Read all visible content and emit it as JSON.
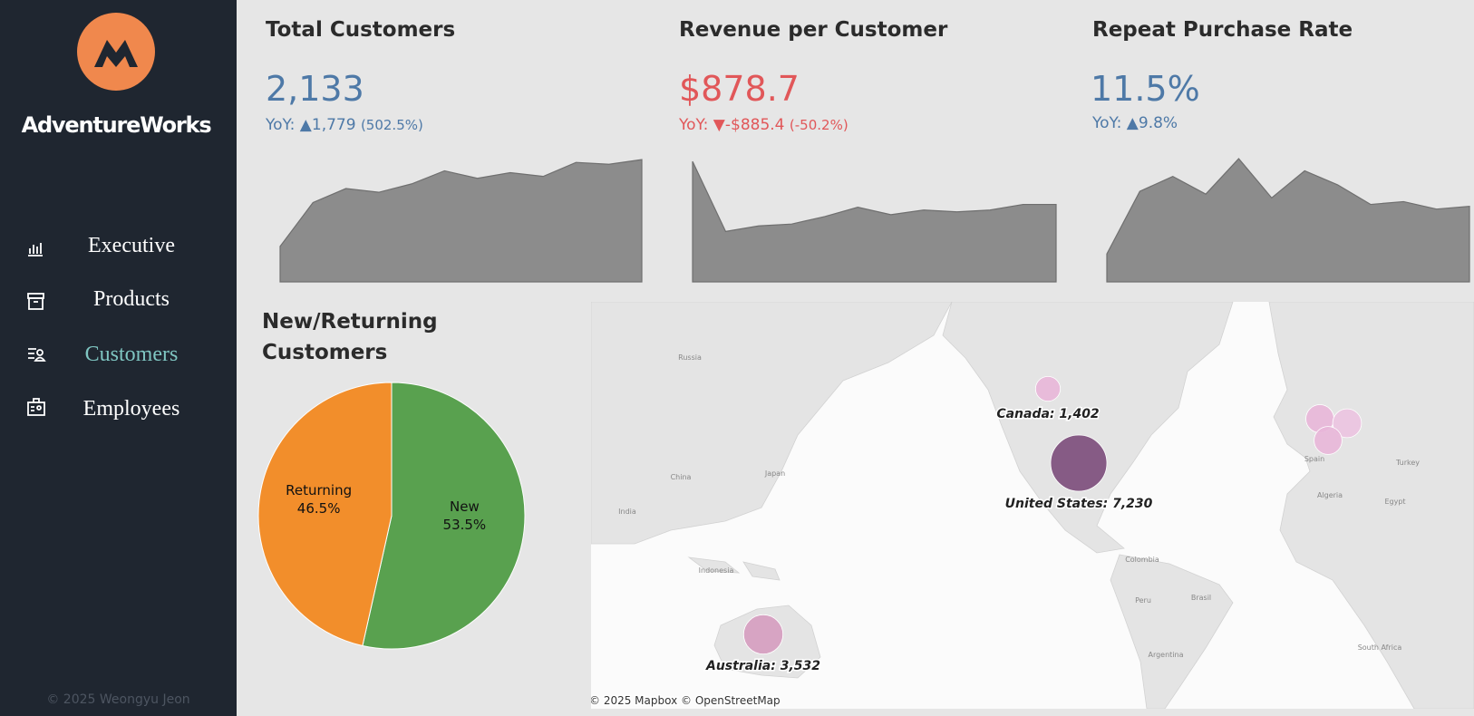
{
  "sidebar": {
    "brand": "AdventureWorks",
    "nav": [
      "Executive",
      "Products",
      "Customers",
      "Employees"
    ],
    "active": 2,
    "footer": "© 2025 Weongyu Jeon"
  },
  "kpis": [
    {
      "title": "Total Customers",
      "value": "2,133",
      "yoy": "YoY:",
      "arrow": "▲",
      "change": "1,779",
      "change_pct": "(502.5%)",
      "color": "#4e79a7",
      "spark": {
        "type": "area",
        "values": [
          38,
          85,
          100,
          96,
          105,
          119,
          111,
          117,
          113,
          128,
          126,
          131
        ],
        "ylim": [
          0,
          135
        ],
        "color": "#8c8c8c"
      }
    },
    {
      "title": "Revenue per Customer",
      "value": "$878.7",
      "yoy": "YoY:",
      "arrow": "▼",
      "change": "-$885.4",
      "change_pct": "(-50.2%)",
      "color": "#e15759",
      "spark": {
        "type": "area",
        "values": [
          129,
          54,
          60,
          62,
          70,
          80,
          72,
          77,
          75,
          77,
          83,
          83
        ],
        "ylim": [
          0,
          135
        ],
        "color": "#8c8c8c"
      }
    },
    {
      "title": "Repeat Purchase Rate",
      "value": "11.5%",
      "yoy": "YoY:",
      "arrow": "▲",
      "change": "9.8%",
      "color": "#4e79a7",
      "spark": {
        "type": "area",
        "values": [
          30,
          97,
          113,
          94,
          132,
          90,
          119,
          104,
          83,
          86,
          78,
          81
        ],
        "ylim": [
          0,
          135
        ],
        "color": "#8c8c8c"
      }
    }
  ],
  "pie": {
    "type": "pie",
    "title": "New/Returning Customers",
    "categories": [
      "New",
      "Returning"
    ],
    "values": [
      53.5,
      46.5
    ],
    "value_labels": [
      "53.5%",
      "46.5%"
    ],
    "colors": [
      "#59a14f",
      "#f28e2b"
    ]
  },
  "map": {
    "type": "bubble-map",
    "bubbles": [
      {
        "label": "Canada: 1,402",
        "value": 1402,
        "color": "#e8b6d8"
      },
      {
        "label": "United States: 7,230",
        "value": 7230,
        "color": "#7b4b7a"
      },
      {
        "label": "Australia: 3,532",
        "value": 3532,
        "color": "#d59cbf"
      },
      {
        "label": null,
        "value": 1800,
        "color": "#e8b6d8"
      },
      {
        "label": null,
        "value": 1900,
        "color": "#ebc3e0"
      },
      {
        "label": null,
        "value": 1780,
        "color": "#e8b6d8"
      }
    ],
    "places": [
      "Russia",
      "China",
      "Japan",
      "India",
      "Indonesia",
      "Colombia",
      "Peru",
      "Brasil",
      "Argentina",
      "Algeria",
      "Egypt",
      "Turkey",
      "Spain",
      "South Africa"
    ],
    "attribution": "© 2025 Mapbox © OpenStreetMap"
  }
}
